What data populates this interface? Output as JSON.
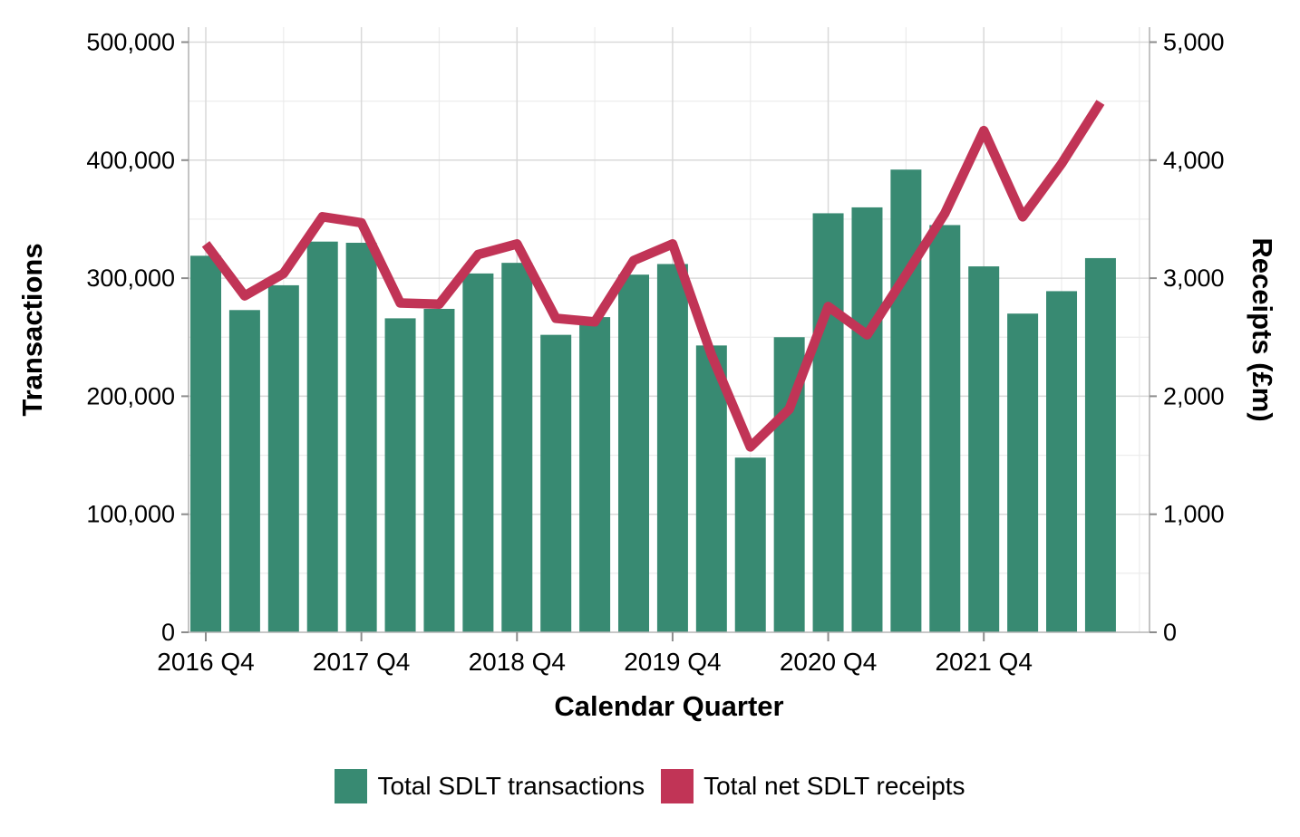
{
  "chart_data": {
    "type": "bar+line combo, dual axis",
    "categories": [
      "2016 Q4",
      "2017 Q1",
      "2017 Q2",
      "2017 Q3",
      "2017 Q4",
      "2018 Q1",
      "2018 Q2",
      "2018 Q3",
      "2018 Q4",
      "2019 Q1",
      "2019 Q2",
      "2019 Q3",
      "2019 Q4",
      "2020 Q1",
      "2020 Q2",
      "2020 Q3",
      "2020 Q4",
      "2021 Q1",
      "2021 Q2",
      "2021 Q3",
      "2021 Q4",
      "2022 Q1",
      "2022 Q2",
      "2022 Q3"
    ],
    "series": [
      {
        "name": "Total SDLT transactions",
        "type": "bar",
        "axis": "left",
        "color": "#388A72",
        "values": [
          319000,
          273000,
          294000,
          331000,
          330000,
          266000,
          274000,
          304000,
          313000,
          252000,
          267000,
          303000,
          312000,
          243000,
          148000,
          250000,
          355000,
          360000,
          392000,
          345000,
          310000,
          270000,
          289000,
          317000
        ]
      },
      {
        "name": "Total net SDLT receipts",
        "type": "line",
        "axis": "right",
        "color": "#C13456",
        "values": [
          3290,
          2850,
          3040,
          3520,
          3470,
          2790,
          2780,
          3200,
          3290,
          2660,
          2630,
          3150,
          3290,
          2350,
          1570,
          1890,
          2760,
          2520,
          3030,
          3550,
          4250,
          3520,
          3970,
          4490
        ]
      }
    ],
    "title": "",
    "xlabel": "Calendar Quarter",
    "ylabel_left": "Transactions",
    "ylabel_right": "Receipts (£m)",
    "y_left": {
      "min": 0,
      "max": 500000,
      "ticks": [
        0,
        100000,
        200000,
        300000,
        400000,
        500000
      ],
      "tick_labels": [
        "0",
        "100,000",
        "200,000",
        "300,000",
        "400,000",
        "500,000"
      ]
    },
    "y_right": {
      "min": 0,
      "max": 5000,
      "ticks": [
        0,
        1000,
        2000,
        3000,
        4000,
        5000
      ],
      "tick_labels": [
        "0",
        "1,000",
        "2,000",
        "3,000",
        "4,000",
        "5,000"
      ]
    },
    "x_ticks": {
      "indices": [
        0,
        4,
        8,
        12,
        16,
        20
      ],
      "labels": [
        "2016 Q4",
        "2017 Q4",
        "2018 Q4",
        "2019 Q4",
        "2020 Q4",
        "2021 Q4"
      ]
    },
    "grid": "on",
    "legend_position": "bottom"
  },
  "legend": {
    "items": [
      {
        "label": "Total SDLT transactions",
        "color": "#388A72"
      },
      {
        "label": "Total net SDLT receipts",
        "color": "#C13456"
      }
    ]
  },
  "colors": {
    "bar_green": "#388A72",
    "line_crimson": "#C13456",
    "grid_major": "#D9D9D9",
    "grid_minor": "#ECECEC",
    "panel_border": "#B5B5B5",
    "tick_mark": "#8C8C8C",
    "text": "#000000",
    "background": "#FFFFFF"
  }
}
